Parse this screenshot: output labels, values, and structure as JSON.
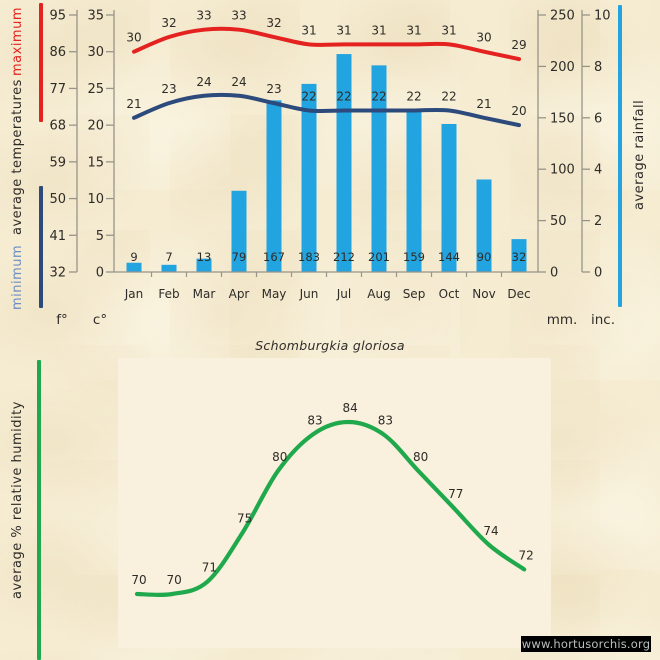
{
  "page": {
    "species_title": "Schomburgkia gloriosa",
    "watermark": "www.hortusorchis.org"
  },
  "colors": {
    "background": "#f5ecd2",
    "plot_background": "#f9f0dd",
    "maximum_line": "#e42320",
    "minimum_line": "#2c4a7c",
    "rainfall_bar": "#22a4e0",
    "humidity_line": "#1fa94c",
    "maximum_text": "#e42320",
    "minimum_text": "#6b8ec5",
    "axis": "#98948a",
    "label_text": "#2e2c28",
    "watermark_bg": "#000000",
    "watermark_text": "#bcbfbf"
  },
  "sidebars": {
    "temperature_maximum": "maximum",
    "temperature_average": "average temperatures",
    "temperature_minimum": "minimum",
    "rainfall": "average rainfall",
    "humidity": "average %  relative humidity"
  },
  "units": {
    "fahrenheit": "f°",
    "celsius": "c°",
    "millimeters": "mm.",
    "inches": "inc."
  },
  "chart_data": [
    {
      "type": "bar",
      "title": "average monthly maximum/minimum temperatures and rainfall",
      "categories": [
        "Jan",
        "Feb",
        "Mar",
        "Apr",
        "May",
        "Jun",
        "Jul",
        "Aug",
        "Sep",
        "Oct",
        "Nov",
        "Dec"
      ],
      "series": [
        {
          "name": "maximum temperature (c°)",
          "kind": "line",
          "color": "#e42320",
          "values": [
            30,
            32,
            33,
            33,
            32,
            31,
            31,
            31,
            31,
            31,
            30,
            29
          ]
        },
        {
          "name": "minimum temperature (c°)",
          "kind": "line",
          "color": "#2c4a7c",
          "values": [
            21,
            23,
            24,
            24,
            23,
            22,
            22,
            22,
            22,
            22,
            21,
            20
          ]
        },
        {
          "name": "average rainfall (mm)",
          "kind": "bar",
          "color": "#22a4e0",
          "values": [
            9,
            7,
            13,
            79,
            167,
            183,
            212,
            201,
            159,
            144,
            90,
            32
          ]
        }
      ],
      "y_axis_celsius": {
        "label": "c°",
        "range": [
          0,
          35
        ],
        "ticks": [
          "35",
          "30",
          "25",
          "20",
          "15",
          "10",
          "5",
          "0"
        ]
      },
      "y_axis_fahrenheit": {
        "label": "f°",
        "range": [
          32,
          95
        ],
        "ticks": [
          "95",
          "86",
          "77",
          "68",
          "59",
          "50",
          "41",
          "32"
        ]
      },
      "y_axis_mm": {
        "label": "mm.",
        "range": [
          0,
          250
        ],
        "ticks": [
          "250",
          "200",
          "150",
          "100",
          "50",
          "0"
        ]
      },
      "y_axis_inches": {
        "label": "inc.",
        "range": [
          0,
          10
        ],
        "ticks": [
          "10",
          "8",
          "6",
          "4",
          "2",
          "0"
        ]
      },
      "grid": false,
      "legend_position": "left and right color rails"
    },
    {
      "type": "line",
      "title": "average % relative humidity",
      "categories": [
        "Jan",
        "Feb",
        "Mar",
        "Apr",
        "May",
        "Jun",
        "Jul",
        "Aug",
        "Sep",
        "Oct",
        "Nov",
        "Dec"
      ],
      "values": [
        70,
        70,
        71,
        75,
        80,
        83,
        84,
        83,
        80,
        77,
        74,
        72
      ],
      "color": "#1fa94c",
      "ylim": [
        68,
        86
      ],
      "grid": false,
      "axis_labels_visible": false
    }
  ]
}
